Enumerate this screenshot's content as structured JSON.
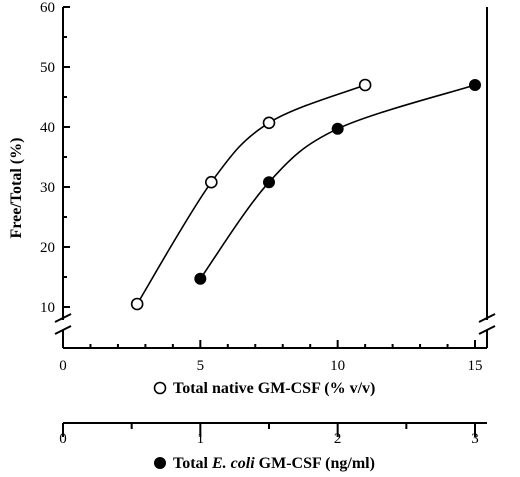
{
  "chart_data": {
    "type": "scatter",
    "ylabel": "Free/Total (%)",
    "ylim": [
      0,
      60
    ],
    "yticks": [
      10,
      20,
      30,
      40,
      50,
      60
    ],
    "grid": false,
    "axis_break": true,
    "x_axes": [
      {
        "label_prefix": "Total native GM-CSF (% v/v)",
        "label_italic": "",
        "label_suffix": "",
        "xlim": [
          0,
          16
        ],
        "ticks": [
          0,
          5,
          10,
          15
        ],
        "tick_labels": [
          "0",
          "5",
          "10",
          "15"
        ]
      },
      {
        "label_prefix": "Total ",
        "label_italic": "E. coli",
        "label_suffix": " GM-CSF (ng/ml)",
        "xlim": [
          0,
          3.2
        ],
        "ticks": [
          0,
          1,
          2,
          3
        ],
        "tick_labels": [
          "0",
          "1",
          "2",
          "3"
        ]
      }
    ],
    "series": [
      {
        "marker": "open-circle",
        "x_axis": 0,
        "x": [
          2.7,
          5.4,
          7.5,
          11.0
        ],
        "y": [
          10.5,
          30.8,
          40.7,
          47.0
        ]
      },
      {
        "marker": "filled-circle",
        "x_axis": 0,
        "x": [
          5.0,
          7.5,
          10.0,
          15.0
        ],
        "y": [
          14.7,
          30.8,
          39.7,
          47.0
        ]
      }
    ]
  }
}
